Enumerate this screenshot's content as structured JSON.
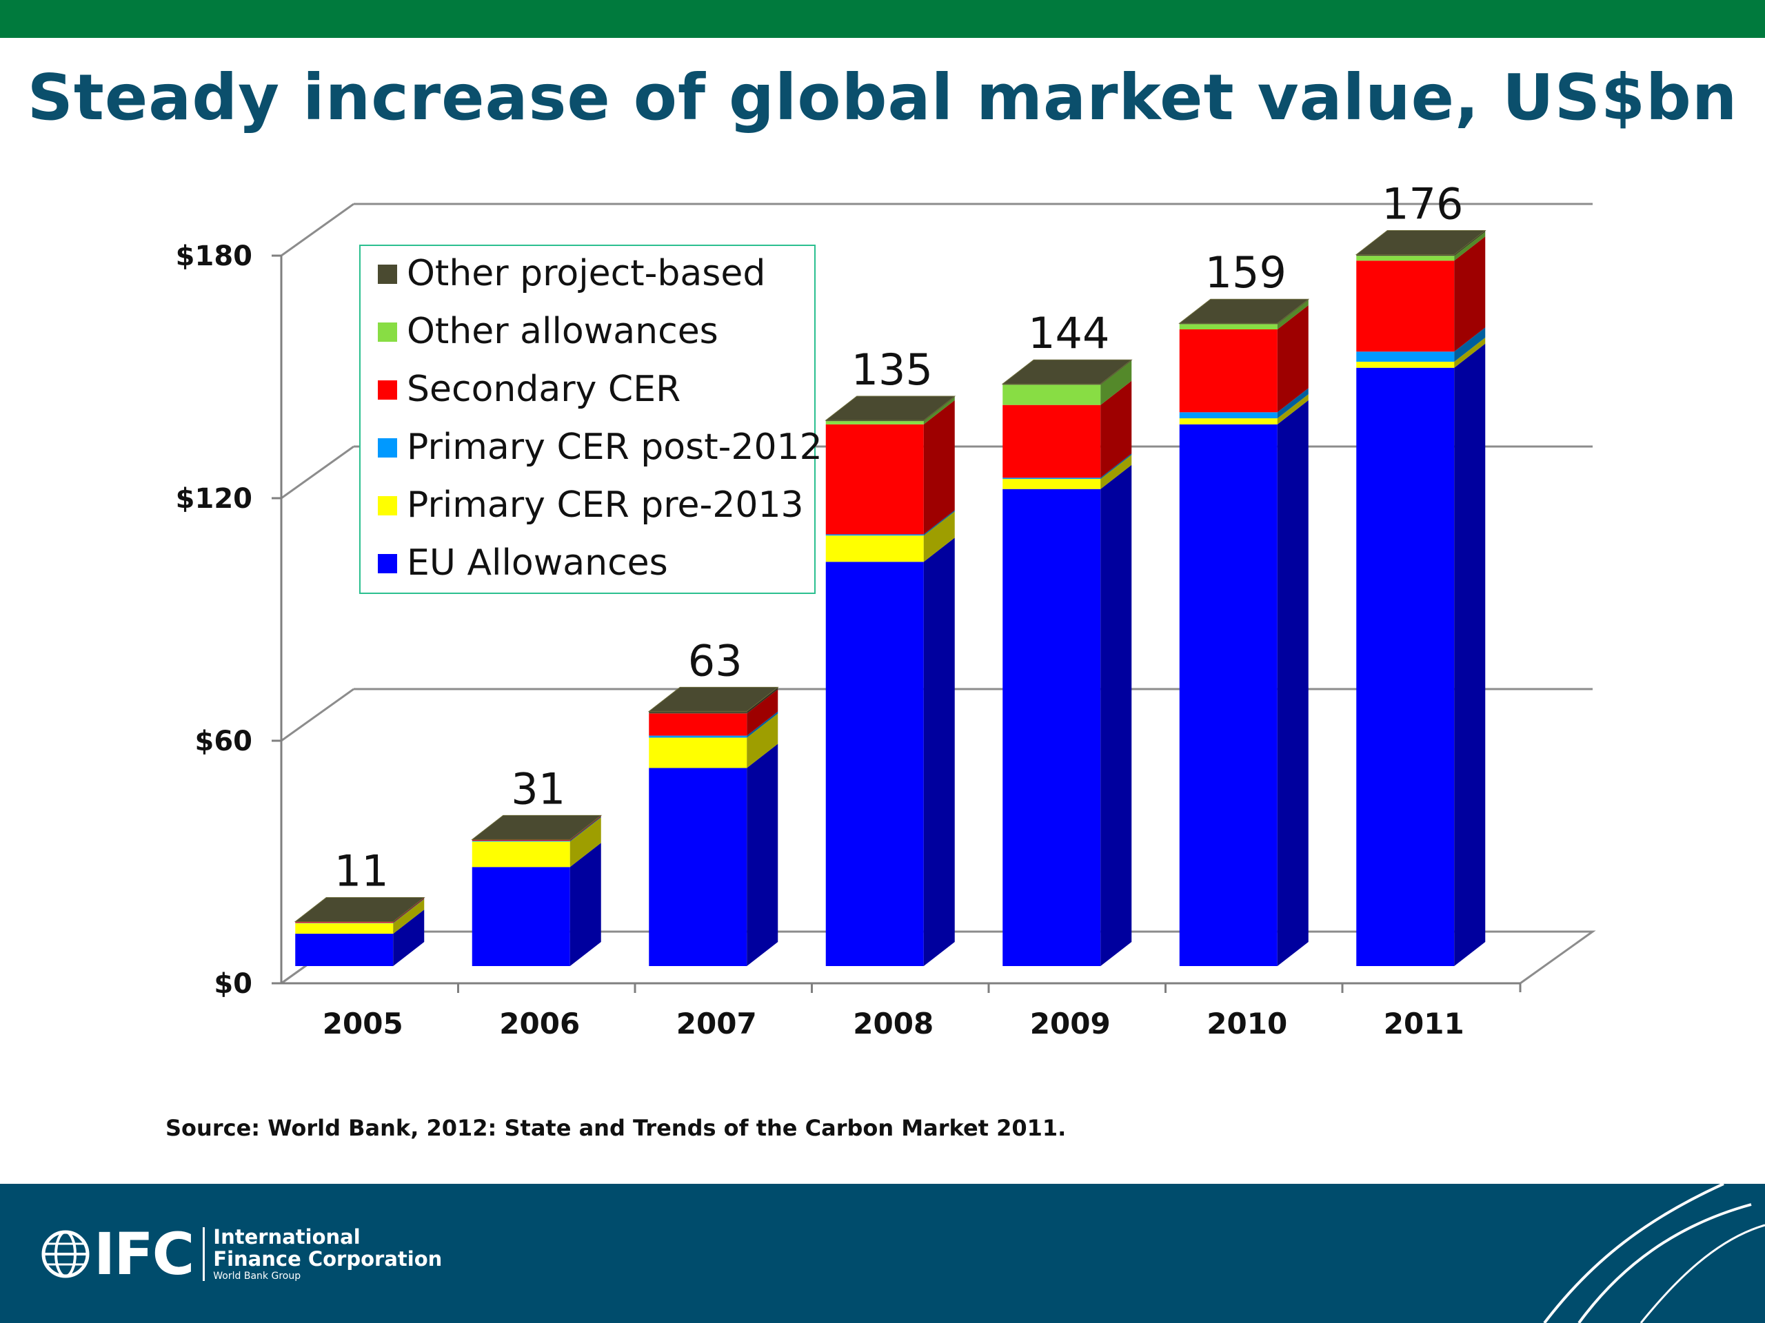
{
  "slide": {
    "title": "Steady increase of global market value, US$bn",
    "source": "Source: World Bank, 2012: State and Trends of the Carbon Market 2011."
  },
  "footer": {
    "logo_mark": "IFC",
    "org_line1": "International",
    "org_line2": "Finance Corporation",
    "org_line3": "World Bank Group"
  },
  "colors": {
    "top_bar": "#007a3d",
    "footer_bar": "#004c6c",
    "title": "#0b4f6c"
  },
  "chart_data": {
    "type": "bar",
    "stacked": true,
    "three_d": true,
    "title": "",
    "xlabel": "",
    "ylabel": "",
    "ylim": [
      0,
      180
    ],
    "y_ticks": [
      0,
      60,
      120,
      180
    ],
    "y_tick_labels": [
      "$0",
      "$60",
      "$120",
      "$180"
    ],
    "grid": true,
    "legend_position": "top-left",
    "categories": [
      "2005",
      "2006",
      "2007",
      "2008",
      "2009",
      "2010",
      "2011"
    ],
    "totals": [
      11,
      31,
      63,
      135,
      144,
      159,
      176
    ],
    "total_labels": [
      "11",
      "31",
      "63",
      "135",
      "144",
      "159",
      "176"
    ],
    "series": [
      {
        "name": "EU Allowances",
        "color": "#0000ff",
        "values": [
          8,
          24.5,
          49,
          100,
          118,
          134,
          148
        ]
      },
      {
        "name": "Primary CER pre-2013",
        "color": "#ffff00",
        "values": [
          2.6,
          6.3,
          7.5,
          6.5,
          2.5,
          1.5,
          1.5
        ]
      },
      {
        "name": "Primary CER post-2012",
        "color": "#0099ff",
        "values": [
          0.1,
          0.2,
          0.5,
          0.3,
          0.3,
          1.5,
          2.5
        ]
      },
      {
        "name": "Secondary CER",
        "color": "#ff0000",
        "values": [
          0.2,
          0.2,
          5.5,
          27.2,
          18,
          20.5,
          22.5
        ]
      },
      {
        "name": "Other allowances",
        "color": "#88dd44",
        "values": [
          0,
          0,
          0,
          0.8,
          5,
          1.3,
          1.2
        ]
      },
      {
        "name": "Other project-based",
        "color": "#4a4a30",
        "values": [
          0.1,
          0.1,
          0.5,
          0.2,
          0.2,
          0.2,
          0.3
        ]
      }
    ]
  }
}
